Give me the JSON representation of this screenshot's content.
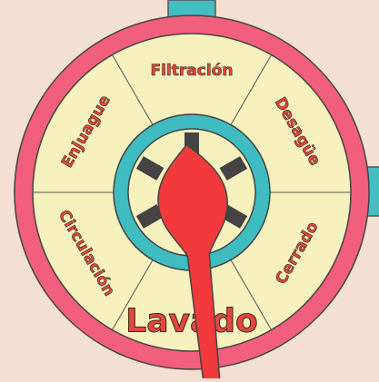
{
  "valve": {
    "positions": [
      {
        "label": "Filtración",
        "angle": 0,
        "size": 17
      },
      {
        "label": "Desagüe",
        "angle": 60,
        "size": 17
      },
      {
        "label": "Cerrado",
        "angle": 120,
        "size": 17
      },
      {
        "label": "Lavado",
        "angle": 180,
        "size": 36
      },
      {
        "label": "Circulación",
        "angle": 240,
        "size": 17
      },
      {
        "label": "Enjuague",
        "angle": 300,
        "size": 17
      }
    ],
    "selected": "Lavado",
    "handle_angle": 174
  },
  "colors": {
    "background": "#f3e0d3",
    "outer_ring": "#f25f7c",
    "dial_face": "#f6f1bd",
    "inner_ring": "#3fbcc0",
    "pipe": "#45bcc1",
    "handle": "#f23a3c",
    "label_fill": "#e2473f",
    "label_stroke": "#3a2a1a",
    "spoke": "#444444"
  }
}
